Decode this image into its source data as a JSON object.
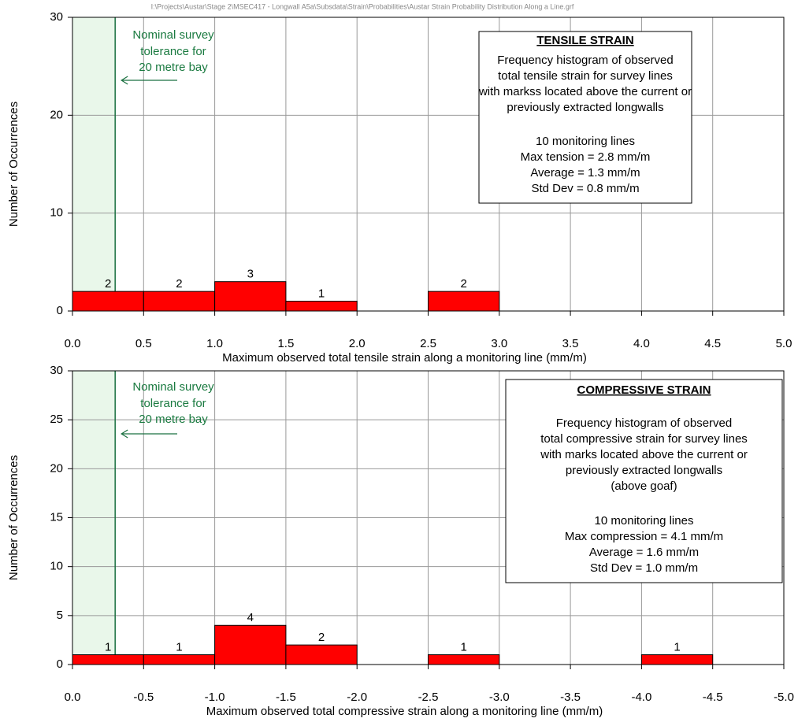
{
  "source_path": "I:\\Projects\\Austar\\Stage 2\\MSEC417 - Longwall A5a\\Subsdata\\Strain\\Probabilities\\Austar Strain Probability Distribution Along a Line.grf",
  "chart_data": [
    {
      "type": "histogram",
      "x_label": "Maximum observed total tensile strain along a monitoring line (mm/m)",
      "y_label": "Number of Occurrences",
      "bins": [
        0,
        0.5,
        1,
        1.5,
        2,
        2.5,
        3,
        3.5,
        4,
        4.5,
        5
      ],
      "values": [
        2,
        2,
        3,
        1,
        0,
        2,
        0,
        0,
        0,
        0
      ],
      "color": "#ff0000",
      "xlim": [
        0,
        5
      ],
      "xticks": [
        {
          "value": 0,
          "label": "0.0"
        },
        {
          "value": 0.5,
          "label": "0.5"
        },
        {
          "value": 1,
          "label": "1.0"
        },
        {
          "value": 1.5,
          "label": "1.5"
        },
        {
          "value": 2,
          "label": "2.0"
        },
        {
          "value": 2.5,
          "label": "2.5"
        },
        {
          "value": 3,
          "label": "3.0"
        },
        {
          "value": 3.5,
          "label": "3.5"
        },
        {
          "value": 4,
          "label": "4.0"
        },
        {
          "value": 4.5,
          "label": "4.5"
        },
        {
          "value": 5,
          "label": "5.0"
        }
      ],
      "ylim": [
        0,
        30
      ],
      "yticks": [
        0,
        10,
        20,
        30
      ],
      "grid": true,
      "tolerance": {
        "x": 0.3,
        "lines": [
          "Nominal survey",
          "tolerance for",
          "20 metre bay"
        ]
      },
      "info_box": {
        "title": "TENSILE STRAIN",
        "description": [
          "Frequency histogram of observed",
          "total tensile strain for survey lines",
          "with markss located above the current or",
          "previously extracted longwalls"
        ],
        "stats": [
          "10 monitoring lines",
          "Max tension = 2.8 mm/m",
          "Average = 1.3 mm/m",
          "Std Dev = 0.8 mm/m"
        ]
      }
    },
    {
      "type": "histogram",
      "x_label": "Maximum observed total compressive strain along a monitoring line (mm/m)",
      "y_label": "Number of Occurrences",
      "bins": [
        0,
        -0.5,
        -1,
        -1.5,
        -2,
        -2.5,
        -3,
        -3.5,
        -4,
        -4.5,
        -5
      ],
      "values": [
        1,
        1,
        4,
        2,
        0,
        1,
        0,
        0,
        1,
        0
      ],
      "color": "#ff0000",
      "xlim": [
        0,
        -5
      ],
      "xticks": [
        {
          "value": 0,
          "label": "0.0"
        },
        {
          "value": -0.5,
          "label": "-0.5"
        },
        {
          "value": -1,
          "label": "-1.0"
        },
        {
          "value": -1.5,
          "label": "-1.5"
        },
        {
          "value": -2,
          "label": "-2.0"
        },
        {
          "value": -2.5,
          "label": "-2.5"
        },
        {
          "value": -3,
          "label": "-3.0"
        },
        {
          "value": -3.5,
          "label": "-3.5"
        },
        {
          "value": -4,
          "label": "-4.0"
        },
        {
          "value": -4.5,
          "label": "-4.5"
        },
        {
          "value": -5,
          "label": "-5.0"
        }
      ],
      "ylim": [
        0,
        30
      ],
      "yticks": [
        0,
        5,
        10,
        15,
        20,
        25,
        30
      ],
      "grid": true,
      "tolerance": {
        "x": -0.3,
        "lines": [
          "Nominal survey",
          "tolerance for",
          "20 metre bay"
        ]
      },
      "info_box": {
        "title": "COMPRESSIVE STRAIN",
        "description": [
          "Frequency histogram of observed",
          "total compressive strain for survey lines",
          "with marks located  above the current or",
          "previously extracted longwalls",
          "(above goaf)"
        ],
        "stats": [
          "10 monitoring lines",
          "Max compression = 4.1 mm/m",
          "Average = 1.6 mm/m",
          "Std Dev = 1.0 mm/m"
        ]
      }
    }
  ]
}
